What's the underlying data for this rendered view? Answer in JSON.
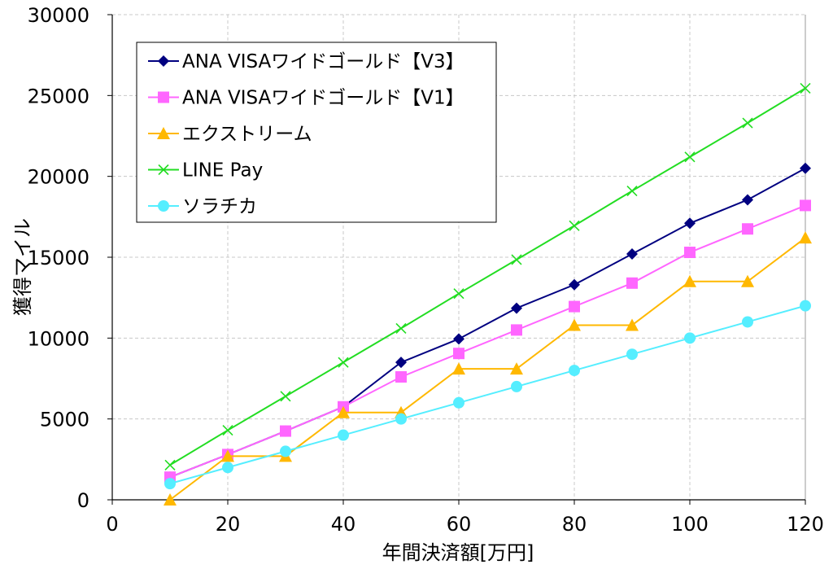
{
  "chart_data": {
    "type": "line",
    "title": "",
    "xlabel": "年間決済額[万円]",
    "ylabel": "獲得マイル",
    "xlim": [
      0,
      120
    ],
    "ylim": [
      0,
      30000
    ],
    "xticks": [
      "0",
      "20",
      "40",
      "60",
      "80",
      "100",
      "120"
    ],
    "yticks": [
      "0",
      "5000",
      "10000",
      "15000",
      "20000",
      "25000",
      "30000"
    ],
    "grid": true,
    "legend_position": "top-left",
    "x": [
      10,
      20,
      30,
      40,
      50,
      60,
      70,
      80,
      90,
      100,
      110,
      120
    ],
    "series": [
      {
        "name": "ANA VISAワイドゴールド【V3】",
        "color": "#000080",
        "marker": "diamond",
        "values": [
          1400,
          2800,
          4250,
          5750,
          8500,
          9950,
          11850,
          13300,
          15200,
          17100,
          18550,
          20500
        ]
      },
      {
        "name": "ANA VISAワイドゴールド【V1】",
        "color": "#ff66ff",
        "marker": "square",
        "values": [
          1400,
          2800,
          4250,
          5750,
          7600,
          9050,
          10500,
          11950,
          13400,
          15300,
          16750,
          18200
        ]
      },
      {
        "name": "エクストリーム",
        "color": "#ffb800",
        "marker": "triangle",
        "values": [
          0,
          2700,
          2700,
          5400,
          5400,
          8100,
          8100,
          10800,
          10800,
          13500,
          13500,
          16200
        ]
      },
      {
        "name": "LINE Pay",
        "color": "#22dd22",
        "marker": "x",
        "values": [
          2150,
          4300,
          6400,
          8500,
          10600,
          12750,
          14850,
          16950,
          19100,
          21200,
          23300,
          25450
        ]
      },
      {
        "name": "ソラチカ",
        "color": "#55eeff",
        "marker": "circle",
        "values": [
          1000,
          2000,
          3000,
          4000,
          5000,
          6000,
          7000,
          8000,
          9000,
          10000,
          11000,
          12000
        ]
      }
    ]
  }
}
